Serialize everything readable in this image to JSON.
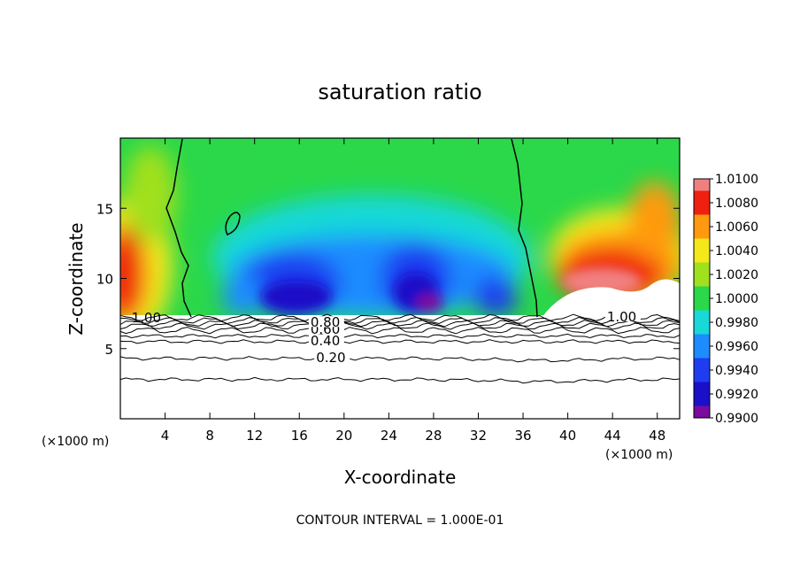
{
  "chart_data": {
    "type": "heatmap",
    "title": "saturation ratio",
    "xlabel": "X-coordinate",
    "ylabel": "Z-coordinate",
    "x_unit_left": "(×1000 m)",
    "x_unit_right": "(×1000 m)",
    "footer": "CONTOUR INTERVAL = 1.000E-01",
    "xlim": [
      0,
      50
    ],
    "ylim": [
      0,
      20
    ],
    "x_ticks": [
      4,
      8,
      12,
      16,
      20,
      24,
      28,
      32,
      36,
      40,
      44,
      48
    ],
    "x_tick_labels": [
      "4",
      "8",
      "12",
      "16",
      "20",
      "24",
      "28",
      "32",
      "36",
      "40",
      "44",
      "48"
    ],
    "y_ticks": [
      5,
      10,
      15
    ],
    "y_tick_labels": [
      "5",
      "10",
      "15"
    ],
    "colorbar": {
      "min": 0.99,
      "max": 1.01,
      "levels": [
        0.99,
        0.992,
        0.994,
        0.996,
        0.998,
        1.0,
        1.002,
        1.004,
        1.006,
        1.008,
        1.01
      ],
      "tick_labels": [
        "0.9900",
        "0.9920",
        "0.9940",
        "0.9960",
        "0.9980",
        "1.0000",
        "1.0020",
        "1.0040",
        "1.0060",
        "1.0080",
        "1.0100"
      ],
      "colors": [
        "#7b0a9e",
        "#1a10c8",
        "#1f3df0",
        "#1e8cff",
        "#18d8d8",
        "#2ad84a",
        "#a0e01e",
        "#f4e81a",
        "#ff9a10",
        "#f02010",
        "#f08080"
      ]
    },
    "contour_lines": [
      {
        "value": 0.2,
        "label": "0.20",
        "z": 4.3
      },
      {
        "value": 0.4,
        "label": "0.40",
        "z": 5.5
      },
      {
        "value": 0.6,
        "label": "0.60",
        "z": 6.3
      },
      {
        "value": 0.8,
        "label": "0.80",
        "z": 6.8
      },
      {
        "value": 1.0,
        "label": "1.00",
        "z": 7.2
      }
    ]
  }
}
